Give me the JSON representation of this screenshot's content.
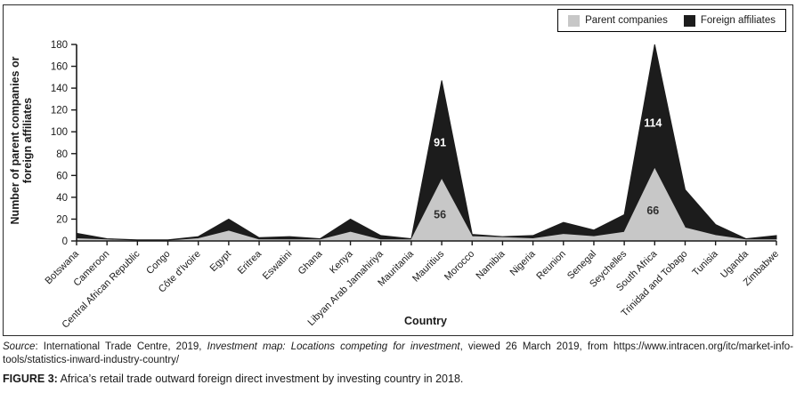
{
  "figure": {
    "source_label": "Source",
    "source_mid": ": International Trade Centre, 2019, ",
    "source_title_italic": "Investment map: Locations competing for investment",
    "source_rest": ", viewed 26 March 2019, from https://www.intracen.org/itc/market-info-tools/statistics-inward-industry-country/",
    "caption_label": "FIGURE 3:",
    "caption_text": " Africa’s retail trade outward foreign direct investment by investing country in 2018."
  },
  "legend": {
    "items": [
      {
        "label": "Parent companies",
        "color": "#c7c7c7"
      },
      {
        "label": "Foreign affiliates",
        "color": "#1c1c1c"
      }
    ]
  },
  "chart_data": {
    "type": "area",
    "stacked": true,
    "title": "",
    "xlabel": "Country",
    "ylabel": "Number of parent companies or foreign affiliates",
    "ylabel_lines": [
      "Number of parent companies or",
      "foreign affiliates"
    ],
    "ylim": [
      0,
      180
    ],
    "ytick_step": 20,
    "grid": false,
    "legend_position": "top-right",
    "axis_color": "#1a1a1a",
    "categories": [
      "Botswana",
      "Cameroon",
      "Central African Republic",
      "Congo",
      "Côte d'Ivoire",
      "Egypt",
      "Eritrea",
      "Eswatini",
      "Ghana",
      "Kenya",
      "Libyan Arab Jamahiriya",
      "Mauritania",
      "Mauritius",
      "Morocco",
      "Namibia",
      "Nigeria",
      "Reunion",
      "Senegal",
      "Seychelles",
      "South Africa",
      "Trinidad and Tobago",
      "Tunisia",
      "Uganda",
      "Zimbabwe"
    ],
    "series": [
      {
        "name": "Parent companies",
        "color": "#c7c7c7",
        "values": [
          2,
          1,
          0,
          0,
          2,
          9,
          1,
          1,
          1,
          8,
          1,
          1,
          56,
          4,
          3,
          2,
          6,
          4,
          8,
          66,
          12,
          5,
          1,
          1
        ]
      },
      {
        "name": "Foreign affiliates",
        "color": "#1c1c1c",
        "values": [
          5,
          1,
          1,
          1,
          2,
          11,
          2,
          3,
          1,
          12,
          4,
          1,
          91,
          2,
          1,
          3,
          11,
          6,
          16,
          114,
          35,
          10,
          1,
          4
        ]
      }
    ],
    "data_labels": [
      {
        "category": "Mauritius",
        "series": "Parent companies",
        "value": 56,
        "color": "#2e2e2e"
      },
      {
        "category": "Mauritius",
        "series": "Foreign affiliates",
        "value": 91,
        "color": "#ffffff"
      },
      {
        "category": "South Africa",
        "series": "Parent companies",
        "value": 66,
        "color": "#2e2e2e"
      },
      {
        "category": "South Africa",
        "series": "Foreign affiliates",
        "value": 114,
        "color": "#ffffff"
      }
    ]
  }
}
